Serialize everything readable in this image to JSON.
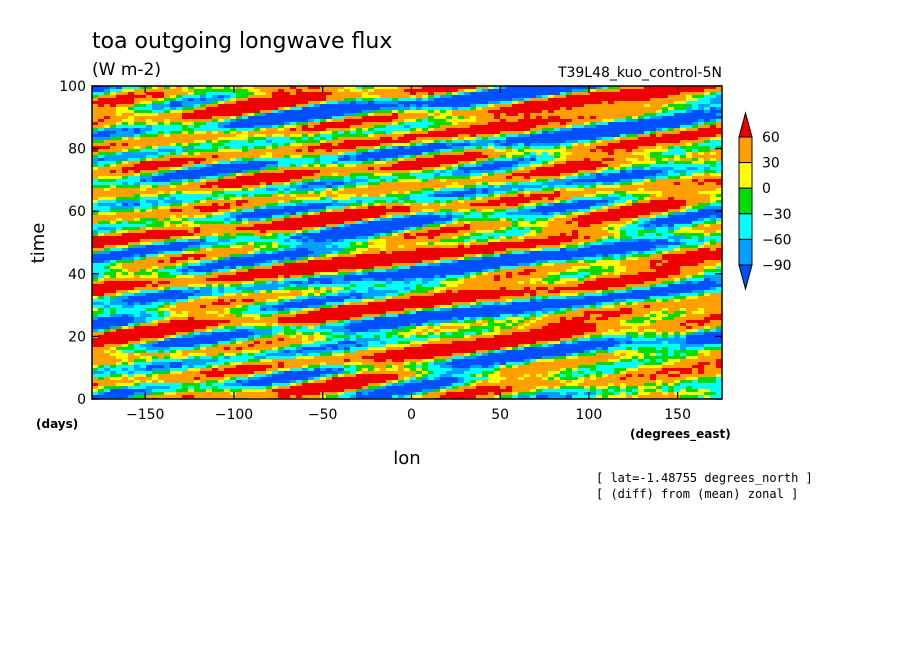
{
  "chart_data": {
    "type": "heatmap",
    "title": "toa outgoing longwave flux",
    "subtitle": "(W m-2)",
    "run_label": "T39L48_kuo_control-5N",
    "xlabel": "lon",
    "ylabel": "time",
    "x_units": "(degrees_east)",
    "y_units": "(days)",
    "xlim": [
      -180,
      175
    ],
    "ylim": [
      0,
      100
    ],
    "x_ticks": [
      -150,
      -100,
      -50,
      0,
      50,
      100,
      150
    ],
    "y_ticks": [
      0,
      20,
      40,
      60,
      80,
      100
    ],
    "colorbar": {
      "levels": [
        60,
        30,
        0,
        -30,
        -60,
        -90
      ],
      "colors": [
        "#ee0000",
        "#ff9f00",
        "#ffff00",
        "#00dd00",
        "#00ffff",
        "#00a0ff",
        "#0050ff"
      ]
    },
    "notes": [
      "[ lat=-1.48755 degrees_north ]",
      "[ (diff) from (mean) zonal ]"
    ]
  }
}
